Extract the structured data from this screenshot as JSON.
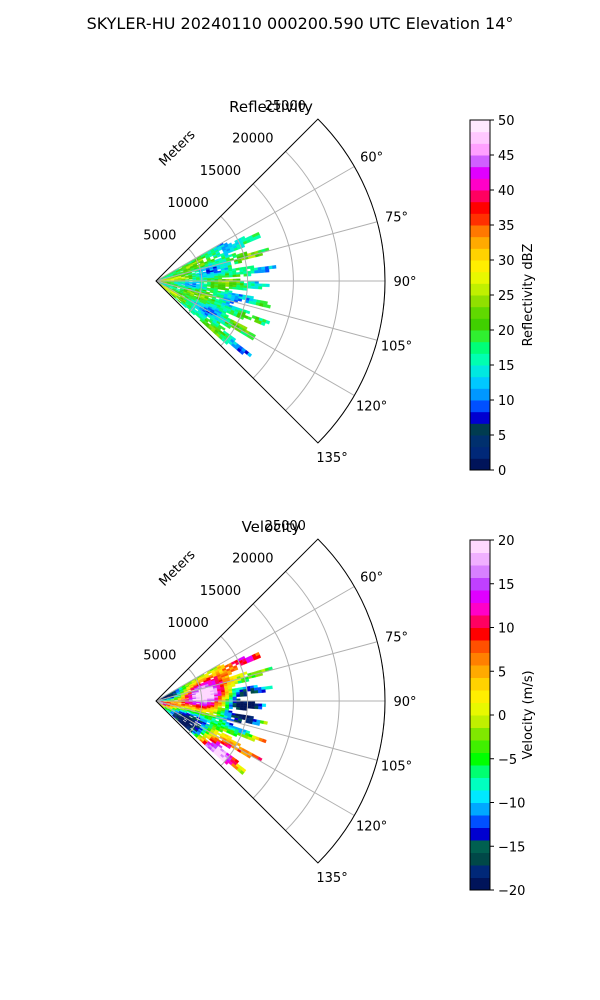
{
  "suptitle": "SKYLER-HU  20240110  000200.590 UTC Elevation 14°",
  "colors": {
    "grid": "#b0b0b0",
    "axis": "#000000",
    "nodata": "#ffffff"
  },
  "chart_data": [
    {
      "type": "heatmap",
      "projection": "polar-sector",
      "title": "Reflectivity",
      "radial_unit_label": "Meters",
      "radial_ticks": [
        5000,
        10000,
        15000,
        20000,
        25000
      ],
      "radial_range": [
        0,
        25000
      ],
      "angle_range_deg": [
        45,
        135
      ],
      "angle_ticks": [
        "60°",
        "75°",
        "90°",
        "105°",
        "120°",
        "135°"
      ],
      "data_extent": {
        "radius_max_m": 12500,
        "angle_min_deg": 60,
        "angle_max_deg": 132
      },
      "colorbar": {
        "label": "Reflectivity dBZ",
        "range": [
          0,
          50
        ],
        "ticks": [
          "0",
          "5",
          "10",
          "15",
          "20",
          "25",
          "30",
          "35",
          "40",
          "45",
          "50"
        ],
        "palette": [
          "#00145a",
          "#002878",
          "#00306e",
          "#003c50",
          "#0000d0",
          "#0050ff",
          "#0098ff",
          "#00c8ff",
          "#00e8e0",
          "#00ffb0",
          "#00ff78",
          "#30f030",
          "#40d000",
          "#60d800",
          "#90e000",
          "#c0f000",
          "#e8f800",
          "#ffee00",
          "#ffd200",
          "#ffaa00",
          "#ff7800",
          "#ff3000",
          "#ff0000",
          "#ff0060",
          "#ff00c8",
          "#e000ff",
          "#d060ff",
          "#ffa0ff",
          "#ffc8ff",
          "#ffe8ff"
        ]
      }
    },
    {
      "type": "heatmap",
      "projection": "polar-sector",
      "title": "Velocity",
      "radial_unit_label": "Meters",
      "radial_ticks": [
        5000,
        10000,
        15000,
        20000,
        25000
      ],
      "radial_range": [
        0,
        25000
      ],
      "angle_range_deg": [
        45,
        135
      ],
      "angle_ticks": [
        "60°",
        "75°",
        "90°",
        "105°",
        "120°",
        "135°"
      ],
      "data_extent": {
        "radius_max_m": 12500,
        "angle_min_deg": 60,
        "angle_max_deg": 132
      },
      "colorbar": {
        "label": "Velocity (m/s)",
        "range": [
          -20,
          20
        ],
        "ticks": [
          "−20",
          "−15",
          "−10",
          "−5",
          "0",
          "5",
          "10",
          "15",
          "20"
        ],
        "palette": [
          "#00145a",
          "#002878",
          "#004848",
          "#006050",
          "#0000d0",
          "#0050ff",
          "#00a8ff",
          "#00e8ff",
          "#00ffc0",
          "#00ff70",
          "#00ff00",
          "#40f000",
          "#80e800",
          "#c0f000",
          "#e8f800",
          "#ffee00",
          "#ffd200",
          "#ffaa00",
          "#ff8000",
          "#ff5000",
          "#ff0000",
          "#ff0060",
          "#ff00c8",
          "#e000ff",
          "#c040ff",
          "#d880ff",
          "#f0b0ff",
          "#ffd8ff"
        ]
      }
    }
  ]
}
